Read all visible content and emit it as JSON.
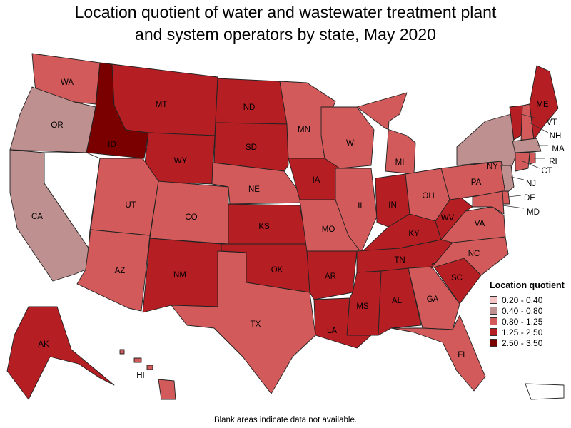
{
  "title_line1": "Location quotient of water and wastewater treatment plant",
  "title_line2": "and system operators by state, May 2020",
  "footnote": "Blank areas indicate data not available.",
  "legend": {
    "title": "Location quotient",
    "items": [
      {
        "label": "0.20 - 0.40",
        "color": "#f4c4c4"
      },
      {
        "label": "0.40 - 0.80",
        "color": "#bf9090"
      },
      {
        "label": "0.80 - 1.25",
        "color": "#d35a5a"
      },
      {
        "label": "1.25 - 2.50",
        "color": "#b51e22"
      },
      {
        "label": "2.50 - 3.50",
        "color": "#7a0000"
      }
    ]
  },
  "states": {
    "WA": "0.80 - 1.25",
    "OR": "0.40 - 0.80",
    "CA": "0.40 - 0.80",
    "NV": "",
    "ID": "2.50 - 3.50",
    "MT": "1.25 - 2.50",
    "WY": "1.25 - 2.50",
    "UT": "0.80 - 1.25",
    "AZ": "0.80 - 1.25",
    "CO": "0.80 - 1.25",
    "NM": "1.25 - 2.50",
    "ND": "1.25 - 2.50",
    "SD": "1.25 - 2.50",
    "NE": "0.80 - 1.25",
    "KS": "1.25 - 2.50",
    "OK": "1.25 - 2.50",
    "TX": "0.80 - 1.25",
    "MN": "0.80 - 1.25",
    "IA": "1.25 - 2.50",
    "MO": "0.80 - 1.25",
    "AR": "1.25 - 2.50",
    "LA": "1.25 - 2.50",
    "WI": "0.80 - 1.25",
    "IL": "0.80 - 1.25",
    "MI": "0.80 - 1.25",
    "IN": "1.25 - 2.50",
    "OH": "0.80 - 1.25",
    "KY": "1.25 - 2.50",
    "TN": "1.25 - 2.50",
    "MS": "1.25 - 2.50",
    "AL": "1.25 - 2.50",
    "GA": "0.80 - 1.25",
    "FL": "0.80 - 1.25",
    "SC": "1.25 - 2.50",
    "NC": "0.80 - 1.25",
    "VA": "0.80 - 1.25",
    "WV": "1.25 - 2.50",
    "PA": "0.80 - 1.25",
    "NY": "0.40 - 0.80",
    "VT": "1.25 - 2.50",
    "NH": "0.80 - 1.25",
    "ME": "1.25 - 2.50",
    "MA": "0.40 - 0.80",
    "RI": "0.80 - 1.25",
    "CT": "0.80 - 1.25",
    "NJ": "0.40 - 0.80",
    "DE": "0.80 - 1.25",
    "MD": "0.80 - 1.25",
    "AK": "1.25 - 2.50",
    "HI": "0.80 - 1.25",
    "PR": ""
  }
}
